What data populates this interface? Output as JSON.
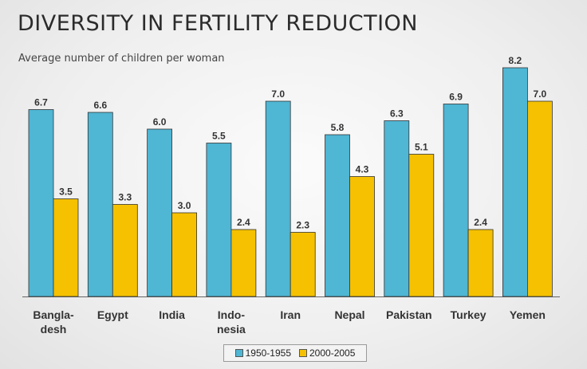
{
  "slide": {
    "title": "DIVERSITY IN FERTILITY REDUCTION",
    "subtitle": "Average number of children per woman"
  },
  "colors": {
    "series_1950": "#4fb6d4",
    "series_2000": "#f5c100",
    "bar_border": "#333333",
    "axis": "#666666"
  },
  "chart_data": {
    "type": "bar",
    "title": "",
    "categories": [
      [
        "Bangla-",
        "desh"
      ],
      [
        "Egypt"
      ],
      [
        "India"
      ],
      [
        "Indo-",
        "nesia"
      ],
      [
        "Iran"
      ],
      [
        "Nepal"
      ],
      [
        "Pakistan"
      ],
      [
        "Turkey"
      ],
      [
        "Yemen"
      ]
    ],
    "series": [
      {
        "name": "1950-1955",
        "values": [
          6.7,
          6.6,
          6.0,
          5.5,
          7.0,
          5.8,
          6.3,
          6.9,
          8.2
        ]
      },
      {
        "name": "2000-2005",
        "values": [
          3.5,
          3.3,
          3.0,
          2.4,
          2.3,
          4.3,
          5.1,
          2.4,
          7.0
        ]
      }
    ],
    "ylim": [
      0,
      8.2
    ],
    "grid": false,
    "legend_position": "bottom"
  }
}
